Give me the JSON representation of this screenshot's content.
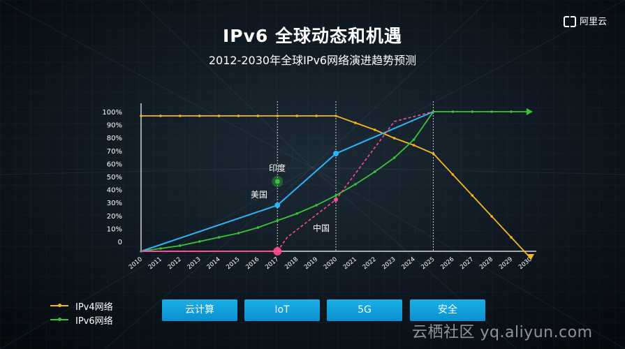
{
  "header": {
    "title": "IPv6 全球动态和机遇",
    "subtitle": "2012-2030年全球IPv6网络演进趋势预测",
    "logo_text": "阿里云"
  },
  "chart_data": {
    "type": "line",
    "x": [
      2010,
      2011,
      2012,
      2013,
      2014,
      2015,
      2016,
      2017,
      2018,
      2019,
      2020,
      2021,
      2022,
      2023,
      2024,
      2025,
      2026,
      2027,
      2028,
      2029,
      2030
    ],
    "y_ticks": [
      "100%",
      "90%",
      "80%",
      "70%",
      "60%",
      "50%",
      "40%",
      "30%",
      "20%",
      "10%",
      "0"
    ],
    "ylim": [
      0,
      100
    ],
    "series": [
      {
        "name": "IPv4网络",
        "color": "#f5b51f",
        "points": [
          [
            2010,
            97
          ],
          [
            2011,
            97
          ],
          [
            2012,
            97
          ],
          [
            2013,
            97
          ],
          [
            2014,
            97
          ],
          [
            2015,
            97
          ],
          [
            2016,
            97
          ],
          [
            2017,
            97
          ],
          [
            2018,
            97
          ],
          [
            2019,
            97
          ],
          [
            2020,
            97
          ],
          [
            2021,
            92
          ],
          [
            2022,
            87
          ],
          [
            2023,
            81
          ],
          [
            2024,
            76
          ],
          [
            2025,
            70
          ],
          [
            2026,
            55
          ],
          [
            2027,
            40
          ],
          [
            2028,
            25
          ],
          [
            2029,
            10
          ],
          [
            2030,
            -5
          ]
        ]
      },
      {
        "name": "IPv6网络",
        "color": "#3bc23b",
        "points": [
          [
            2010,
            0
          ],
          [
            2011,
            2
          ],
          [
            2012,
            4
          ],
          [
            2013,
            7
          ],
          [
            2014,
            10
          ],
          [
            2015,
            13
          ],
          [
            2016,
            17
          ],
          [
            2017,
            22
          ],
          [
            2018,
            27
          ],
          [
            2019,
            33
          ],
          [
            2020,
            40
          ],
          [
            2021,
            48
          ],
          [
            2022,
            57
          ],
          [
            2023,
            67
          ],
          [
            2024,
            80
          ],
          [
            2025,
            100
          ],
          [
            2026,
            100
          ],
          [
            2027,
            100
          ],
          [
            2028,
            100
          ],
          [
            2029,
            100
          ],
          [
            2030,
            100
          ]
        ]
      }
    ],
    "country_lines": [
      {
        "label": "美国",
        "color": "#29b6f6",
        "points": [
          [
            2010,
            0
          ],
          [
            2017,
            33
          ],
          [
            2020,
            70
          ],
          [
            2025,
            100
          ]
        ]
      },
      {
        "label": "中国",
        "color": "#ff4d8d",
        "points": [
          [
            2010,
            0
          ],
          [
            2017,
            0
          ],
          [
            2017.5,
            10
          ],
          [
            2020,
            37
          ],
          [
            2023,
            93
          ],
          [
            2025,
            100
          ]
        ]
      },
      {
        "label": "印度",
        "color": "#3bc23b",
        "points": [
          [
            2017,
            50
          ]
        ]
      }
    ],
    "vlines": [
      2017,
      2020,
      2025
    ]
  },
  "legend": {
    "ipv4": "IPv4网络",
    "ipv6": "IPv6网络"
  },
  "tags": [
    "云计算",
    "IoT",
    "5G",
    "安全"
  ],
  "watermark": "云栖社区 yq.aliyun.com",
  "colors": {
    "ipv4": "#f5b51f",
    "ipv6": "#3bc23b",
    "usa": "#29b6f6",
    "china": "#ff4d8d",
    "tag": "#129fdb"
  }
}
